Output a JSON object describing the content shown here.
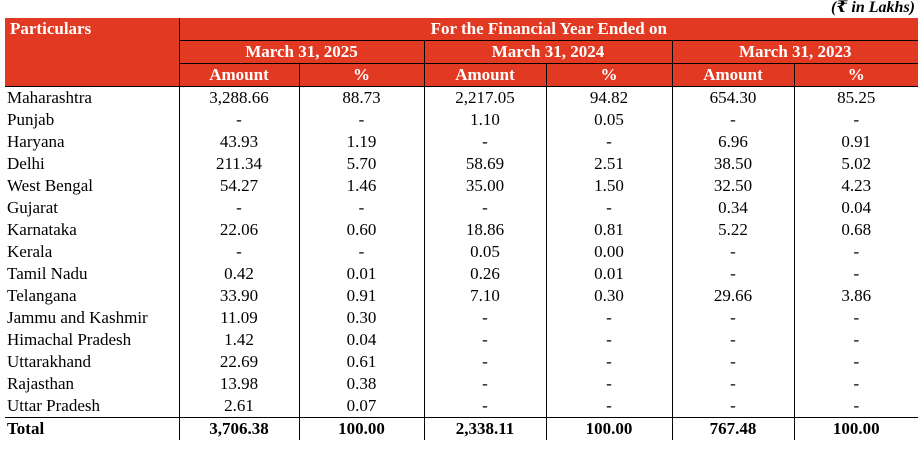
{
  "unit_note": "(₹ in Lakhs)",
  "header": {
    "particulars": "Particulars",
    "group_title": "For the Financial Year Ended on",
    "years": [
      "March 31, 2025",
      "March 31, 2024",
      "March 31, 2023"
    ],
    "amount_label": "Amount",
    "percent_label": "%"
  },
  "rows": [
    {
      "name": "Maharashtra",
      "values": [
        "3,288.66",
        "88.73",
        "2,217.05",
        "94.82",
        "654.30",
        "85.25"
      ]
    },
    {
      "name": "Punjab",
      "values": [
        "-",
        "-",
        "1.10",
        "0.05",
        "-",
        "-"
      ]
    },
    {
      "name": "Haryana",
      "values": [
        "43.93",
        "1.19",
        "-",
        "-",
        "6.96",
        "0.91"
      ]
    },
    {
      "name": "Delhi",
      "values": [
        "211.34",
        "5.70",
        "58.69",
        "2.51",
        "38.50",
        "5.02"
      ]
    },
    {
      "name": "West Bengal",
      "values": [
        "54.27",
        "1.46",
        "35.00",
        "1.50",
        "32.50",
        "4.23"
      ]
    },
    {
      "name": "Gujarat",
      "values": [
        "-",
        "-",
        "-",
        "-",
        "0.34",
        "0.04"
      ]
    },
    {
      "name": "Karnataka",
      "values": [
        "22.06",
        "0.60",
        "18.86",
        "0.81",
        "5.22",
        "0.68"
      ]
    },
    {
      "name": "Kerala",
      "values": [
        "-",
        "-",
        "0.05",
        "0.00",
        "-",
        "-"
      ]
    },
    {
      "name": "Tamil Nadu",
      "values": [
        "0.42",
        "0.01",
        "0.26",
        "0.01",
        "-",
        "-"
      ]
    },
    {
      "name": "Telangana",
      "values": [
        "33.90",
        "0.91",
        "7.10",
        "0.30",
        "29.66",
        "3.86"
      ]
    },
    {
      "name": "Jammu and Kashmir",
      "values": [
        "11.09",
        "0.30",
        "-",
        "-",
        "-",
        "-"
      ]
    },
    {
      "name": "Himachal Pradesh",
      "values": [
        "1.42",
        "0.04",
        "-",
        "-",
        "-",
        "-"
      ]
    },
    {
      "name": "Uttarakhand",
      "values": [
        "22.69",
        "0.61",
        "-",
        "-",
        "-",
        "-"
      ]
    },
    {
      "name": "Rajasthan",
      "values": [
        "13.98",
        "0.38",
        "-",
        "-",
        "-",
        "-"
      ]
    },
    {
      "name": "Uttar Pradesh",
      "values": [
        "2.61",
        "0.07",
        "-",
        "-",
        "-",
        "-"
      ]
    }
  ],
  "total": {
    "name": "Total",
    "values": [
      "3,706.38",
      "100.00",
      "2,338.11",
      "100.00",
      "767.48",
      "100.00"
    ]
  },
  "colors": {
    "header_bg": "#e23a22",
    "header_text": "#ffffff"
  }
}
